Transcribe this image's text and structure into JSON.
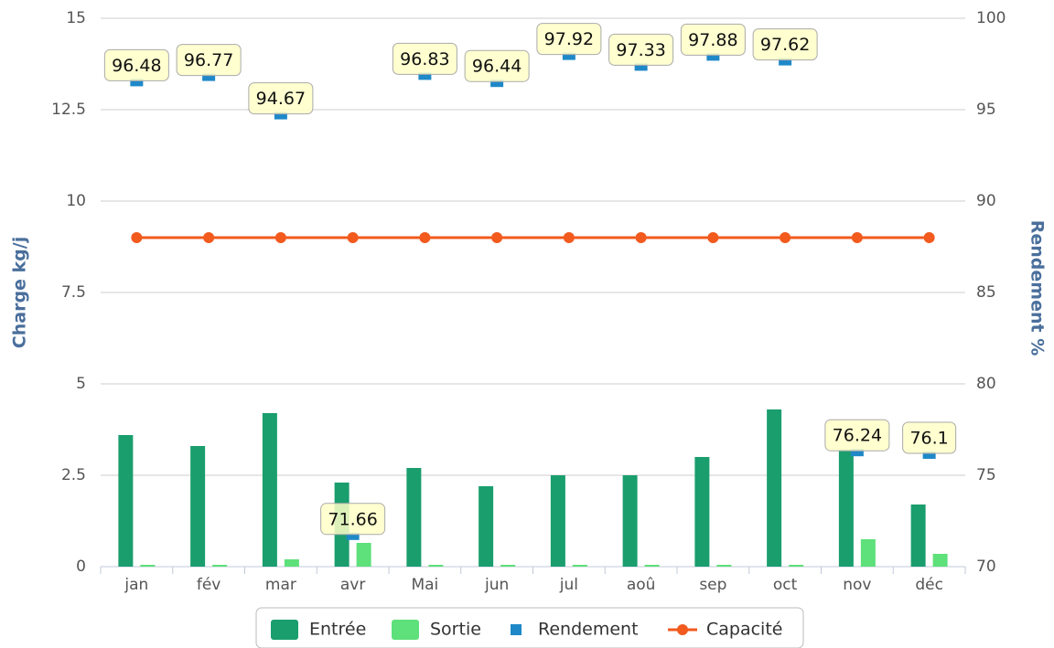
{
  "chart_data": {
    "type": "bar",
    "categories": [
      "jan",
      "fév",
      "mar",
      "avr",
      "Mai",
      "jun",
      "jul",
      "aoû",
      "sep",
      "oct",
      "nov",
      "déc"
    ],
    "ylabel": "Charge kg/j",
    "y2label": "Rendement %",
    "ylim": [
      0,
      15
    ],
    "yticks": [
      0,
      2.5,
      5,
      7.5,
      10,
      12.5,
      15
    ],
    "y2lim": [
      70,
      100
    ],
    "y2ticks": [
      70,
      75,
      80,
      85,
      90,
      95,
      100
    ],
    "grid": true,
    "legend": "bottom",
    "series": [
      {
        "name": "Entrée",
        "type": "bar",
        "color": "#1a9e6e",
        "values": [
          3.6,
          3.3,
          4.2,
          2.3,
          2.7,
          2.2,
          2.5,
          2.5,
          3.0,
          4.3,
          3.2,
          1.7
        ]
      },
      {
        "name": "Sortie",
        "type": "bar",
        "color": "#5ee07a",
        "values": [
          0.05,
          0.05,
          0.2,
          0.65,
          0.05,
          0.05,
          0.05,
          0.05,
          0.05,
          0.05,
          0.75,
          0.35
        ]
      },
      {
        "name": "Rendement",
        "type": "scatter",
        "axis": "y2",
        "color": "#1e88c8",
        "values": [
          96.48,
          96.77,
          94.67,
          71.66,
          96.83,
          96.44,
          97.92,
          97.33,
          97.88,
          97.62,
          76.24,
          76.1
        ]
      },
      {
        "name": "Capacité",
        "type": "line",
        "color": "#f25a1e",
        "values": [
          9,
          9,
          9,
          9,
          9,
          9,
          9,
          9,
          9,
          9,
          9,
          9
        ]
      }
    ]
  }
}
